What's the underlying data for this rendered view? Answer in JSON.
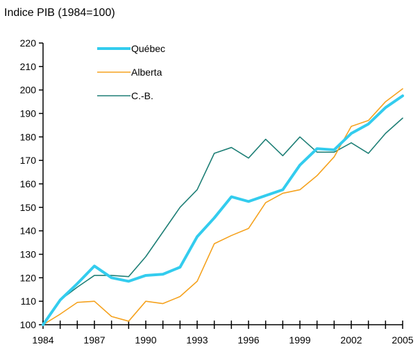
{
  "chart_data": {
    "type": "line",
    "title": "Indice PIB (1984=100)",
    "xlabel": "",
    "ylabel": "",
    "x": [
      1984,
      1985,
      1986,
      1987,
      1988,
      1989,
      1990,
      1991,
      1992,
      1993,
      1994,
      1995,
      1996,
      1997,
      1998,
      1999,
      2000,
      2001,
      2002,
      2003,
      2004,
      2005
    ],
    "x_tick_labels": [
      "1984",
      "1987",
      "1990",
      "1993",
      "1996",
      "1999",
      "2002",
      "2005"
    ],
    "y_tick_labels": [
      "100",
      "110",
      "120",
      "130",
      "140",
      "150",
      "160",
      "170",
      "180",
      "190",
      "200",
      "210",
      "220"
    ],
    "ylim": [
      100,
      220
    ],
    "grid": false,
    "legend_position": "top-left",
    "series": [
      {
        "name": "Québec",
        "color": "#33CCEE",
        "width": 4,
        "values": [
          100,
          110.5,
          117.5,
          125,
          120,
          118.5,
          121,
          121.5,
          124.5,
          137.5,
          145.5,
          154.5,
          152.5,
          155,
          157.5,
          168,
          175,
          174.5,
          181.5,
          185.5,
          192.5,
          197.5
        ]
      },
      {
        "name": "Alberta",
        "color": "#F5A21E",
        "width": 1.6,
        "values": [
          100,
          104.5,
          109.5,
          110,
          103.5,
          101.5,
          110,
          109,
          112,
          118.5,
          134.5,
          138,
          141,
          152,
          156,
          157.5,
          163.5,
          171.5,
          184.5,
          187,
          195,
          200.5
        ]
      },
      {
        "name": "C.-B.",
        "color": "#1E7F76",
        "width": 1.6,
        "values": [
          100,
          110.5,
          116,
          121,
          121,
          120.5,
          129,
          139.5,
          150,
          157.5,
          173,
          175.5,
          171,
          179,
          172,
          180,
          173.5,
          173.5,
          177.5,
          173,
          181.5,
          188
        ]
      }
    ]
  }
}
